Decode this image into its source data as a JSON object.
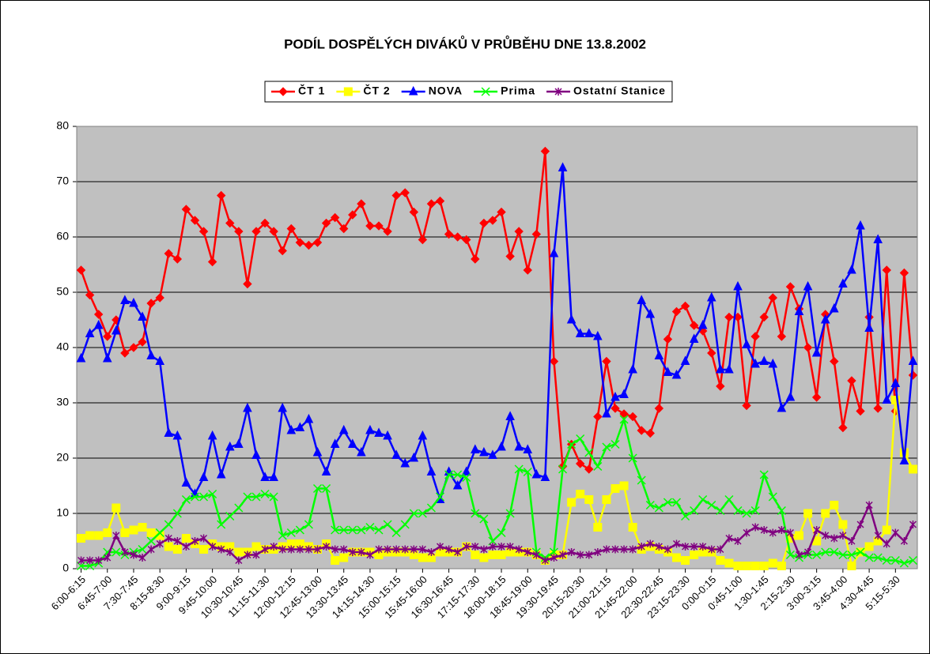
{
  "chart_data": {
    "type": "line",
    "title": "PODÍL DOSPĚLÝCH DIVÁKŮ V PRŮBĚHU DNE 13.8.2002",
    "categories": [
      "6:00-6:15",
      null,
      null,
      "6:45-7:00",
      null,
      null,
      "7:30-7:45",
      null,
      null,
      "8:15-8:30",
      null,
      null,
      "9:00-9:15",
      null,
      null,
      "9:45-10:00",
      null,
      null,
      "10:30-10:45",
      null,
      null,
      "11:15-11:30",
      null,
      null,
      "12:00-12:15",
      null,
      null,
      "12:45-13:00",
      null,
      null,
      "13:30-13:45",
      null,
      null,
      "14:15-14:30",
      null,
      null,
      "15:00-15:15",
      null,
      null,
      "15:45-16:00",
      null,
      null,
      "16:30-16:45",
      null,
      null,
      "17:15-17:30",
      null,
      null,
      "18:00-18:15",
      null,
      null,
      "18:45-19:00",
      null,
      null,
      "19:30-19:45",
      null,
      null,
      "20:15-20:30",
      null,
      null,
      "21:00-21:15",
      null,
      null,
      "21:45-22:00",
      null,
      null,
      "22:30-22:45",
      null,
      null,
      "23:15-23:30",
      null,
      null,
      "0:00-0:15",
      null,
      null,
      "0:45-1:00",
      null,
      null,
      "1:30-1:45",
      null,
      null,
      "2:15-2:30",
      null,
      null,
      "3:00-3:15",
      null,
      null,
      "3:45-4:00",
      null,
      null,
      "4:30-4:45",
      null,
      null,
      "5:15-5:30",
      null,
      null
    ],
    "series": [
      {
        "name": "ČT 1",
        "color": "#ff0000",
        "marker": "diamond",
        "values": [
          54,
          49.5,
          46,
          42,
          45,
          39,
          40,
          41,
          48,
          49,
          57,
          56,
          65,
          63,
          61,
          55.5,
          67.5,
          62.5,
          61,
          51.5,
          61,
          62.5,
          61,
          57.5,
          61.5,
          59,
          58.5,
          59,
          62.5,
          63.5,
          61.5,
          64,
          66,
          62,
          62,
          61,
          67.5,
          68,
          64.5,
          59.5,
          66,
          66.5,
          60.5,
          60,
          59.5,
          56,
          62.5,
          63,
          64.5,
          56.5,
          61,
          54,
          60.5,
          75.5,
          37.5,
          18.5,
          22.5,
          19,
          18,
          27.5,
          37.5,
          29,
          28,
          27.5,
          25,
          24.5,
          29,
          41.5,
          46.5,
          47.5,
          44,
          43,
          39,
          33,
          45.5,
          45.5,
          29.5,
          42,
          45.5,
          49,
          42,
          51,
          47,
          40,
          31,
          46,
          37.5,
          25.5,
          34,
          28.5,
          45.5,
          29,
          54,
          28.5,
          53.5,
          35
        ]
      },
      {
        "name": "ČT 2",
        "color": "#ffff00",
        "marker": "square",
        "values": [
          5.5,
          6,
          6,
          6.5,
          11,
          6.5,
          7,
          7.5,
          6.5,
          6,
          4,
          3.5,
          5.5,
          4.5,
          3.5,
          4.5,
          4,
          4,
          3,
          3,
          4,
          3.5,
          3.5,
          4,
          4.5,
          4.5,
          4,
          3.5,
          4.5,
          1.5,
          2,
          3,
          3,
          3,
          2.5,
          3,
          3,
          3,
          2.5,
          2,
          2,
          3,
          3,
          3,
          4,
          2.5,
          2,
          2.5,
          2.5,
          3,
          3,
          3,
          2.5,
          1.5,
          2.5,
          2.5,
          12,
          13.5,
          12.5,
          7.5,
          12.5,
          14.5,
          15,
          7.5,
          3.5,
          4,
          3.5,
          3,
          2,
          1.5,
          2.5,
          3,
          3,
          1.5,
          1,
          0.5,
          0.5,
          0.5,
          0.5,
          1,
          0.5,
          5.5,
          6,
          10,
          5,
          10,
          11.5,
          8,
          0.5,
          3,
          4,
          5,
          7,
          30.5,
          21,
          18
        ]
      },
      {
        "name": "NOVA",
        "color": "#0000ff",
        "marker": "triangle",
        "values": [
          38,
          42.5,
          44,
          38,
          43,
          48.5,
          48,
          45.5,
          38.5,
          37.5,
          24.5,
          24,
          15.5,
          13.5,
          16.5,
          24,
          17,
          22,
          22.5,
          29,
          20.5,
          16.5,
          16.5,
          29,
          25,
          25.5,
          27,
          21,
          17.5,
          22.5,
          25,
          22.5,
          21,
          25,
          24.5,
          24,
          20.5,
          19,
          20,
          24,
          17.5,
          12.5,
          17.5,
          15,
          17.5,
          21.5,
          21,
          20.5,
          22,
          27.5,
          22,
          21.5,
          17,
          16.5,
          57,
          72.5,
          45,
          42.5,
          42.5,
          42,
          28,
          31,
          31.5,
          36,
          48.5,
          46,
          38.5,
          35.5,
          35,
          37.5,
          41.5,
          44,
          49,
          36,
          36,
          51,
          40.5,
          37,
          37.5,
          37,
          29,
          31,
          46.5,
          51,
          39,
          45,
          47,
          51.5,
          54,
          62,
          43.5,
          59.5,
          30.5,
          33.5,
          19.5,
          37.5
        ]
      },
      {
        "name": "Prima",
        "color": "#00ff00",
        "marker": "x",
        "values": [
          0.5,
          0.5,
          1,
          3,
          3,
          2.5,
          3,
          3.5,
          5,
          6.5,
          8,
          10,
          12.5,
          13,
          13,
          13.5,
          8,
          9.5,
          11,
          13,
          13,
          13.5,
          13,
          6,
          6.5,
          7,
          8,
          14.5,
          14.5,
          7,
          7,
          7,
          7,
          7.5,
          7,
          8,
          6.5,
          8,
          10,
          10,
          11,
          13,
          17,
          17,
          16.5,
          10,
          9,
          5,
          6.5,
          10,
          18,
          17.5,
          3,
          2,
          3,
          18,
          22.5,
          23.5,
          21,
          18.5,
          22,
          22.5,
          27,
          20,
          16,
          11.5,
          11,
          12,
          12,
          9.5,
          10.5,
          12.5,
          11.5,
          10.5,
          12.5,
          10.5,
          10,
          10.5,
          17,
          13,
          10.5,
          2.5,
          2,
          2.5,
          2.5,
          3,
          3,
          2.5,
          2.5,
          3,
          2,
          2,
          1.5,
          1.5,
          1,
          1.5
        ]
      },
      {
        "name": "Ostatní Stanice",
        "color": "#800080",
        "marker": "star",
        "values": [
          1.5,
          1.5,
          1.5,
          2,
          6,
          3,
          2.5,
          2,
          3.5,
          4.5,
          5.5,
          5,
          4,
          5,
          5.5,
          4,
          3.5,
          3,
          1.5,
          2.5,
          2.5,
          3.5,
          4,
          3.5,
          3.5,
          3.5,
          3.5,
          3.5,
          4,
          3.5,
          3.5,
          3,
          3,
          2.5,
          3.5,
          3.5,
          3.5,
          3.5,
          3.5,
          3.5,
          3,
          4,
          3.5,
          3,
          4,
          4,
          3.5,
          4,
          4,
          4,
          3.5,
          3,
          2.5,
          1.5,
          2,
          2.5,
          3,
          2.5,
          2.5,
          3,
          3.5,
          3.5,
          3.5,
          3.5,
          4,
          4.5,
          4,
          3.5,
          4.5,
          4,
          4,
          4,
          3.5,
          3.5,
          5.5,
          5,
          6.5,
          7.5,
          7,
          6.5,
          7,
          6.5,
          2.5,
          3,
          7,
          6,
          5.5,
          6,
          5,
          8,
          11.5,
          6,
          4.5,
          6.5,
          5,
          8
        ]
      }
    ],
    "ylim": [
      0,
      80
    ],
    "yticks": [
      0,
      10,
      20,
      30,
      40,
      50,
      60,
      70,
      80
    ],
    "grid": true,
    "legend": "top"
  }
}
